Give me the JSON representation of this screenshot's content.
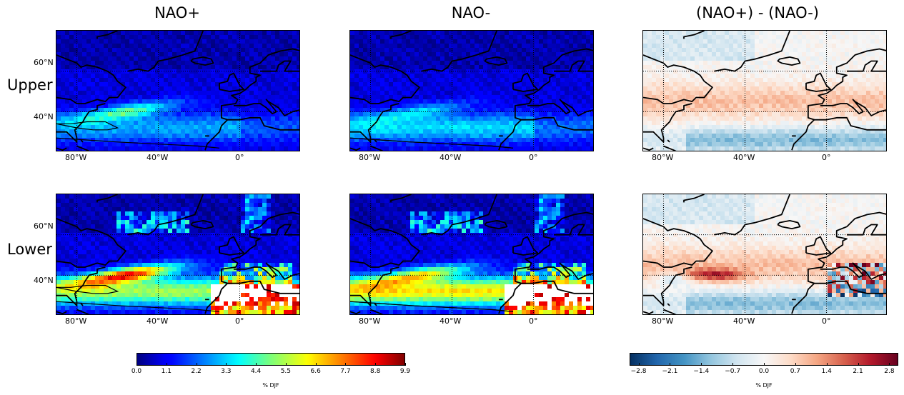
{
  "columns": [
    "NAO+",
    "NAO-",
    "(NAO+) - (NAO-)"
  ],
  "rows": [
    "Upper",
    "Lower"
  ],
  "lat_ticks": [
    "60°N",
    "40°N"
  ],
  "lon_ticks": [
    "80°W",
    "40°W",
    "0°"
  ],
  "colorbars": [
    {
      "colormap": "jet",
      "ticks": [
        "0.0",
        "1.1",
        "2.2",
        "3.3",
        "4.4",
        "5.5",
        "6.6",
        "7.7",
        "8.8",
        "9.9"
      ],
      "label": "% DJF",
      "range": [
        0,
        9.9
      ]
    },
    {
      "colormap": "RdBu_r",
      "ticks": [
        "−2.8",
        "−2.1",
        "−1.4",
        "−0.7",
        "0.0",
        "0.7",
        "1.4",
        "2.1",
        "2.8"
      ],
      "label": "% DJF",
      "range": [
        -3.0,
        3.0
      ]
    }
  ],
  "chart_data": [
    {
      "type": "heatmap",
      "title": "NAO+",
      "row": "Upper",
      "colormap": "jet",
      "value_range": [
        0,
        9.9
      ],
      "grid": true,
      "lon_range": [
        -90,
        30
      ],
      "lat_range": [
        20,
        80
      ]
    },
    {
      "type": "heatmap",
      "title": "NAO-",
      "row": "Upper",
      "colormap": "jet",
      "value_range": [
        0,
        9.9
      ],
      "grid": true,
      "lon_range": [
        -90,
        30
      ],
      "lat_range": [
        20,
        80
      ]
    },
    {
      "type": "heatmap",
      "title": "(NAO+) - (NAO-)",
      "row": "Upper",
      "colormap": "RdBu_r",
      "value_range": [
        -3.0,
        3.0
      ],
      "grid": true,
      "lon_range": [
        -90,
        30
      ],
      "lat_range": [
        20,
        80
      ]
    },
    {
      "type": "heatmap",
      "title": "NAO+",
      "row": "Lower",
      "colormap": "jet",
      "value_range": [
        0,
        9.9
      ],
      "grid": true,
      "lon_range": [
        -90,
        30
      ],
      "lat_range": [
        20,
        80
      ]
    },
    {
      "type": "heatmap",
      "title": "NAO-",
      "row": "Lower",
      "colormap": "jet",
      "value_range": [
        0,
        9.9
      ],
      "grid": true,
      "lon_range": [
        -90,
        30
      ],
      "lat_range": [
        20,
        80
      ]
    },
    {
      "type": "heatmap",
      "title": "(NAO+) - (NAO-)",
      "row": "Lower",
      "colormap": "RdBu_r",
      "value_range": [
        -3.0,
        3.0
      ],
      "grid": true,
      "lon_range": [
        -90,
        30
      ],
      "lat_range": [
        20,
        80
      ]
    }
  ]
}
